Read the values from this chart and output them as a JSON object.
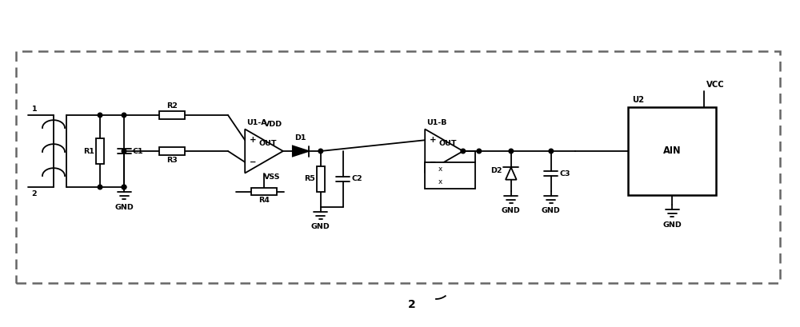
{
  "bg_color": "#ffffff",
  "line_color": "#000000",
  "border_color": "#666666",
  "fig_width": 10.0,
  "fig_height": 4.09,
  "dpi": 100,
  "labels": {
    "R1": "R1",
    "R2": "R2",
    "R3": "R3",
    "R4": "R4",
    "R5": "R5",
    "C1": "C1",
    "C2": "C2",
    "C3": "C3",
    "D1": "D1",
    "D2": "D2",
    "U1A": "U1-A",
    "U1B": "U1-B",
    "U2": "U2",
    "VDD": "VDD",
    "VSS": "VSS",
    "VCC": "VCC",
    "AIN": "AIN",
    "GND": "GND",
    "OUT": "OUT",
    "pin1": "1",
    "pin2": "2",
    "label2": "2"
  }
}
